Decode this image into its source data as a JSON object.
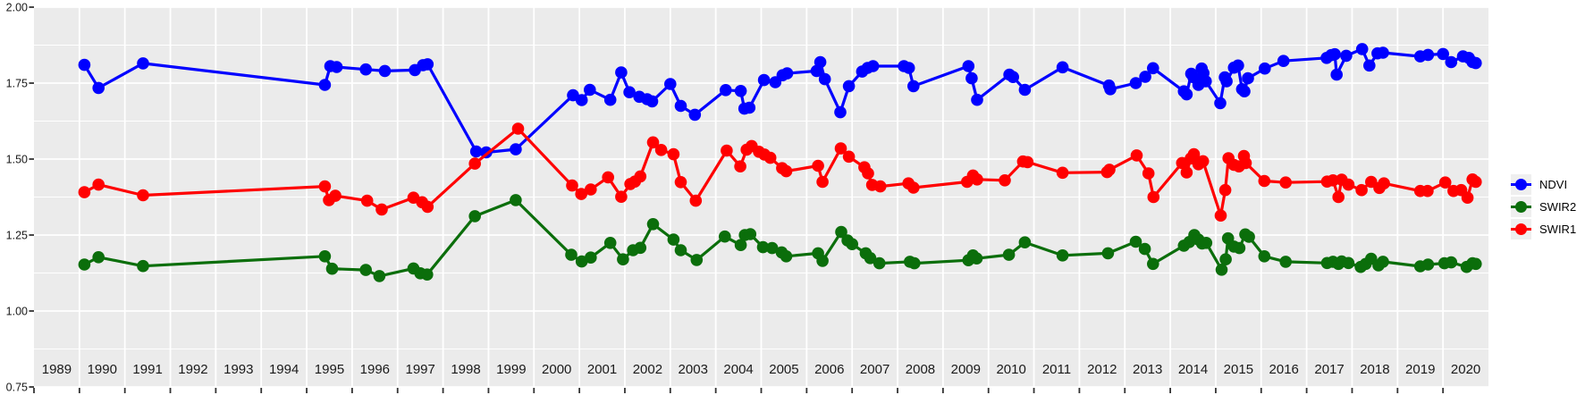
{
  "figure": {
    "background": "#FFFFFF",
    "panel_background": "#EBEBEB",
    "grid_color": "#FFFFFF",
    "axis_text_color": "#1A1A1A",
    "tick_mark_color": "#333333"
  },
  "x_axis": {
    "year_labels": [
      "1989",
      "1990",
      "1991",
      "1992",
      "1993",
      "1994",
      "1995",
      "1996",
      "1997",
      "1998",
      "1999",
      "2000",
      "2001",
      "2002",
      "2003",
      "2004",
      "2005",
      "2006",
      "2007",
      "2008",
      "2009",
      "2010",
      "2011",
      "2012",
      "2013",
      "2014",
      "2015",
      "2016",
      "2017",
      "2018",
      "2019",
      "2020"
    ],
    "range": [
      1989,
      2021
    ]
  },
  "y_axis": {
    "tick_labels": [
      "0.75",
      "1.00",
      "1.25",
      "1.50",
      "1.75",
      "2.00"
    ],
    "tick_values": [
      0.75,
      1.0,
      1.25,
      1.5,
      1.75,
      2.0
    ],
    "minor_tick_values": [
      0.875,
      1.125,
      1.375,
      1.625,
      1.875
    ],
    "range": [
      0.75,
      2.0
    ]
  },
  "legend": {
    "position": "right",
    "items": [
      {
        "label": "NDVI",
        "color": "#0000FF"
      },
      {
        "label": "SWIR2",
        "color": "#0B6E0B"
      },
      {
        "label": "SWIR1",
        "color": "#FF0000"
      }
    ]
  },
  "chart_data": {
    "type": "line",
    "title": "",
    "xlabel": "",
    "ylabel": "",
    "x_unit": "decimal year",
    "xlim": [
      1989,
      2021
    ],
    "ylim": [
      0.75,
      2.0
    ],
    "grid": true,
    "markers": true,
    "legend_position": "right",
    "series": [
      {
        "name": "NDVI",
        "color": "#0000FF",
        "points": [
          [
            1990.11,
            1.81
          ],
          [
            1990.42,
            1.734
          ],
          [
            1991.4,
            1.815
          ],
          [
            1995.4,
            1.744
          ],
          [
            1995.52,
            1.806
          ],
          [
            1995.66,
            1.803
          ],
          [
            1996.3,
            1.795
          ],
          [
            1996.72,
            1.79
          ],
          [
            1997.38,
            1.793
          ],
          [
            1997.56,
            1.809
          ],
          [
            1997.66,
            1.812
          ],
          [
            1998.73,
            1.525
          ],
          [
            1998.95,
            1.522
          ],
          [
            1999.6,
            1.532
          ],
          [
            2000.86,
            1.71
          ],
          [
            2001.05,
            1.694
          ],
          [
            2001.23,
            1.728
          ],
          [
            2001.68,
            1.695
          ],
          [
            2001.92,
            1.785
          ],
          [
            2002.1,
            1.72
          ],
          [
            2002.32,
            1.705
          ],
          [
            2002.49,
            1.697
          ],
          [
            2002.6,
            1.69
          ],
          [
            2003.0,
            1.747
          ],
          [
            2003.23,
            1.675
          ],
          [
            2003.54,
            1.646
          ],
          [
            2004.22,
            1.727
          ],
          [
            2004.55,
            1.724
          ],
          [
            2004.63,
            1.666
          ],
          [
            2004.74,
            1.669
          ],
          [
            2005.06,
            1.76
          ],
          [
            2005.31,
            1.753
          ],
          [
            2005.47,
            1.776
          ],
          [
            2005.57,
            1.782
          ],
          [
            2006.22,
            1.79
          ],
          [
            2006.3,
            1.819
          ],
          [
            2006.4,
            1.763
          ],
          [
            2006.74,
            1.654
          ],
          [
            2006.93,
            1.74
          ],
          [
            2007.22,
            1.788
          ],
          [
            2007.34,
            1.8
          ],
          [
            2007.46,
            1.806
          ],
          [
            2008.14,
            1.806
          ],
          [
            2008.25,
            1.8
          ],
          [
            2008.35,
            1.74
          ],
          [
            2009.56,
            1.806
          ],
          [
            2009.63,
            1.766
          ],
          [
            2009.75,
            1.695
          ],
          [
            2010.46,
            1.778
          ],
          [
            2010.54,
            1.77
          ],
          [
            2010.8,
            1.728
          ],
          [
            2011.63,
            1.802
          ],
          [
            2012.65,
            1.742
          ],
          [
            2012.68,
            1.73
          ],
          [
            2013.24,
            1.75
          ],
          [
            2013.45,
            1.771
          ],
          [
            2013.62,
            1.799
          ],
          [
            2014.3,
            1.723
          ],
          [
            2014.36,
            1.713
          ],
          [
            2014.46,
            1.781
          ],
          [
            2014.51,
            1.769
          ],
          [
            2014.62,
            1.744
          ],
          [
            2014.69,
            1.798
          ],
          [
            2014.73,
            1.783
          ],
          [
            2014.78,
            1.756
          ],
          [
            2015.1,
            1.684
          ],
          [
            2015.2,
            1.769
          ],
          [
            2015.24,
            1.756
          ],
          [
            2015.4,
            1.801
          ],
          [
            2015.49,
            1.808
          ],
          [
            2015.58,
            1.73
          ],
          [
            2015.63,
            1.723
          ],
          [
            2015.71,
            1.766
          ],
          [
            2016.08,
            1.798
          ],
          [
            2016.49,
            1.823
          ],
          [
            2017.44,
            1.833
          ],
          [
            2017.54,
            1.842
          ],
          [
            2017.62,
            1.845
          ],
          [
            2017.66,
            1.778
          ],
          [
            2017.87,
            1.84
          ],
          [
            2018.22,
            1.862
          ],
          [
            2018.38,
            1.808
          ],
          [
            2018.56,
            1.848
          ],
          [
            2018.68,
            1.85
          ],
          [
            2019.5,
            1.838
          ],
          [
            2019.67,
            1.843
          ],
          [
            2020.0,
            1.846
          ],
          [
            2020.18,
            1.819
          ],
          [
            2020.44,
            1.838
          ],
          [
            2020.57,
            1.833
          ],
          [
            2020.65,
            1.819
          ],
          [
            2020.72,
            1.816
          ]
        ]
      },
      {
        "name": "SWIR2",
        "color": "#0B6E0B",
        "points": [
          [
            1990.11,
            1.153
          ],
          [
            1990.42,
            1.177
          ],
          [
            1991.4,
            1.148
          ],
          [
            1995.4,
            1.18
          ],
          [
            1995.56,
            1.139
          ],
          [
            1996.3,
            1.135
          ],
          [
            1996.6,
            1.115
          ],
          [
            1997.35,
            1.14
          ],
          [
            1997.5,
            1.124
          ],
          [
            1997.65,
            1.12
          ],
          [
            1998.7,
            1.312
          ],
          [
            1999.6,
            1.365
          ],
          [
            2000.82,
            1.185
          ],
          [
            2001.05,
            1.163
          ],
          [
            2001.25,
            1.176
          ],
          [
            2001.68,
            1.224
          ],
          [
            2001.96,
            1.17
          ],
          [
            2002.18,
            1.2
          ],
          [
            2002.34,
            1.208
          ],
          [
            2002.62,
            1.286
          ],
          [
            2003.07,
            1.235
          ],
          [
            2003.23,
            1.2
          ],
          [
            2003.58,
            1.168
          ],
          [
            2004.2,
            1.245
          ],
          [
            2004.55,
            1.217
          ],
          [
            2004.64,
            1.25
          ],
          [
            2004.76,
            1.253
          ],
          [
            2005.04,
            1.21
          ],
          [
            2005.24,
            1.207
          ],
          [
            2005.45,
            1.193
          ],
          [
            2005.55,
            1.18
          ],
          [
            2006.25,
            1.19
          ],
          [
            2006.35,
            1.165
          ],
          [
            2006.76,
            1.26
          ],
          [
            2006.9,
            1.232
          ],
          [
            2007.0,
            1.22
          ],
          [
            2007.3,
            1.19
          ],
          [
            2007.4,
            1.174
          ],
          [
            2007.6,
            1.157
          ],
          [
            2008.27,
            1.162
          ],
          [
            2008.37,
            1.157
          ],
          [
            2009.56,
            1.167
          ],
          [
            2009.66,
            1.183
          ],
          [
            2009.74,
            1.173
          ],
          [
            2010.45,
            1.185
          ],
          [
            2010.8,
            1.226
          ],
          [
            2011.63,
            1.183
          ],
          [
            2012.63,
            1.19
          ],
          [
            2013.24,
            1.228
          ],
          [
            2013.44,
            1.204
          ],
          [
            2013.62,
            1.155
          ],
          [
            2014.3,
            1.215
          ],
          [
            2014.42,
            1.227
          ],
          [
            2014.53,
            1.25
          ],
          [
            2014.62,
            1.235
          ],
          [
            2014.7,
            1.222
          ],
          [
            2014.79,
            1.224
          ],
          [
            2015.13,
            1.136
          ],
          [
            2015.22,
            1.17
          ],
          [
            2015.27,
            1.239
          ],
          [
            2015.4,
            1.212
          ],
          [
            2015.52,
            1.207
          ],
          [
            2015.65,
            1.252
          ],
          [
            2015.73,
            1.244
          ],
          [
            2016.07,
            1.18
          ],
          [
            2016.54,
            1.162
          ],
          [
            2017.45,
            1.158
          ],
          [
            2017.58,
            1.162
          ],
          [
            2017.7,
            1.155
          ],
          [
            2017.77,
            1.163
          ],
          [
            2017.92,
            1.158
          ],
          [
            2018.19,
            1.145
          ],
          [
            2018.3,
            1.155
          ],
          [
            2018.42,
            1.172
          ],
          [
            2018.58,
            1.15
          ],
          [
            2018.68,
            1.162
          ],
          [
            2019.5,
            1.147
          ],
          [
            2019.67,
            1.153
          ],
          [
            2020.03,
            1.157
          ],
          [
            2020.18,
            1.16
          ],
          [
            2020.52,
            1.145
          ],
          [
            2020.65,
            1.157
          ],
          [
            2020.72,
            1.155
          ]
        ]
      },
      {
        "name": "SWIR1",
        "color": "#FF0000",
        "points": [
          [
            1990.11,
            1.391
          ],
          [
            1990.42,
            1.416
          ],
          [
            1991.4,
            1.381
          ],
          [
            1995.4,
            1.41
          ],
          [
            1995.49,
            1.365
          ],
          [
            1995.63,
            1.379
          ],
          [
            1996.33,
            1.363
          ],
          [
            1996.65,
            1.334
          ],
          [
            1997.35,
            1.373
          ],
          [
            1997.54,
            1.358
          ],
          [
            1997.66,
            1.343
          ],
          [
            1998.7,
            1.485
          ],
          [
            1999.65,
            1.6
          ],
          [
            2000.84,
            1.413
          ],
          [
            2001.04,
            1.385
          ],
          [
            2001.25,
            1.4
          ],
          [
            2001.63,
            1.44
          ],
          [
            2001.92,
            1.376
          ],
          [
            2002.12,
            1.418
          ],
          [
            2002.22,
            1.426
          ],
          [
            2002.34,
            1.443
          ],
          [
            2002.62,
            1.555
          ],
          [
            2002.8,
            1.53
          ],
          [
            2003.07,
            1.516
          ],
          [
            2003.23,
            1.424
          ],
          [
            2003.56,
            1.363
          ],
          [
            2004.24,
            1.528
          ],
          [
            2004.54,
            1.476
          ],
          [
            2004.68,
            1.531
          ],
          [
            2004.79,
            1.543
          ],
          [
            2004.95,
            1.524
          ],
          [
            2005.07,
            1.515
          ],
          [
            2005.2,
            1.504
          ],
          [
            2005.46,
            1.47
          ],
          [
            2005.55,
            1.46
          ],
          [
            2006.25,
            1.478
          ],
          [
            2006.35,
            1.425
          ],
          [
            2006.75,
            1.535
          ],
          [
            2006.93,
            1.508
          ],
          [
            2007.27,
            1.473
          ],
          [
            2007.35,
            1.453
          ],
          [
            2007.44,
            1.415
          ],
          [
            2007.62,
            1.41
          ],
          [
            2008.24,
            1.42
          ],
          [
            2008.35,
            1.406
          ],
          [
            2009.53,
            1.425
          ],
          [
            2009.66,
            1.446
          ],
          [
            2009.75,
            1.433
          ],
          [
            2010.36,
            1.43
          ],
          [
            2010.76,
            1.492
          ],
          [
            2010.86,
            1.49
          ],
          [
            2011.63,
            1.455
          ],
          [
            2012.61,
            1.457
          ],
          [
            2012.66,
            1.465
          ],
          [
            2013.26,
            1.512
          ],
          [
            2013.52,
            1.453
          ],
          [
            2013.63,
            1.375
          ],
          [
            2014.26,
            1.487
          ],
          [
            2014.36,
            1.456
          ],
          [
            2014.45,
            1.502
          ],
          [
            2014.52,
            1.516
          ],
          [
            2014.62,
            1.483
          ],
          [
            2014.72,
            1.493
          ],
          [
            2015.11,
            1.314
          ],
          [
            2015.21,
            1.398
          ],
          [
            2015.28,
            1.503
          ],
          [
            2015.4,
            1.481
          ],
          [
            2015.51,
            1.476
          ],
          [
            2015.62,
            1.51
          ],
          [
            2015.66,
            1.487
          ],
          [
            2016.07,
            1.428
          ],
          [
            2016.54,
            1.423
          ],
          [
            2017.45,
            1.426
          ],
          [
            2017.58,
            1.43
          ],
          [
            2017.7,
            1.375
          ],
          [
            2017.77,
            1.432
          ],
          [
            2017.92,
            1.416
          ],
          [
            2018.21,
            1.398
          ],
          [
            2018.42,
            1.425
          ],
          [
            2018.6,
            1.405
          ],
          [
            2018.7,
            1.42
          ],
          [
            2019.5,
            1.395
          ],
          [
            2019.66,
            1.395
          ],
          [
            2020.05,
            1.423
          ],
          [
            2020.23,
            1.395
          ],
          [
            2020.4,
            1.398
          ],
          [
            2020.54,
            1.373
          ],
          [
            2020.65,
            1.433
          ],
          [
            2020.72,
            1.425
          ]
        ]
      }
    ]
  }
}
